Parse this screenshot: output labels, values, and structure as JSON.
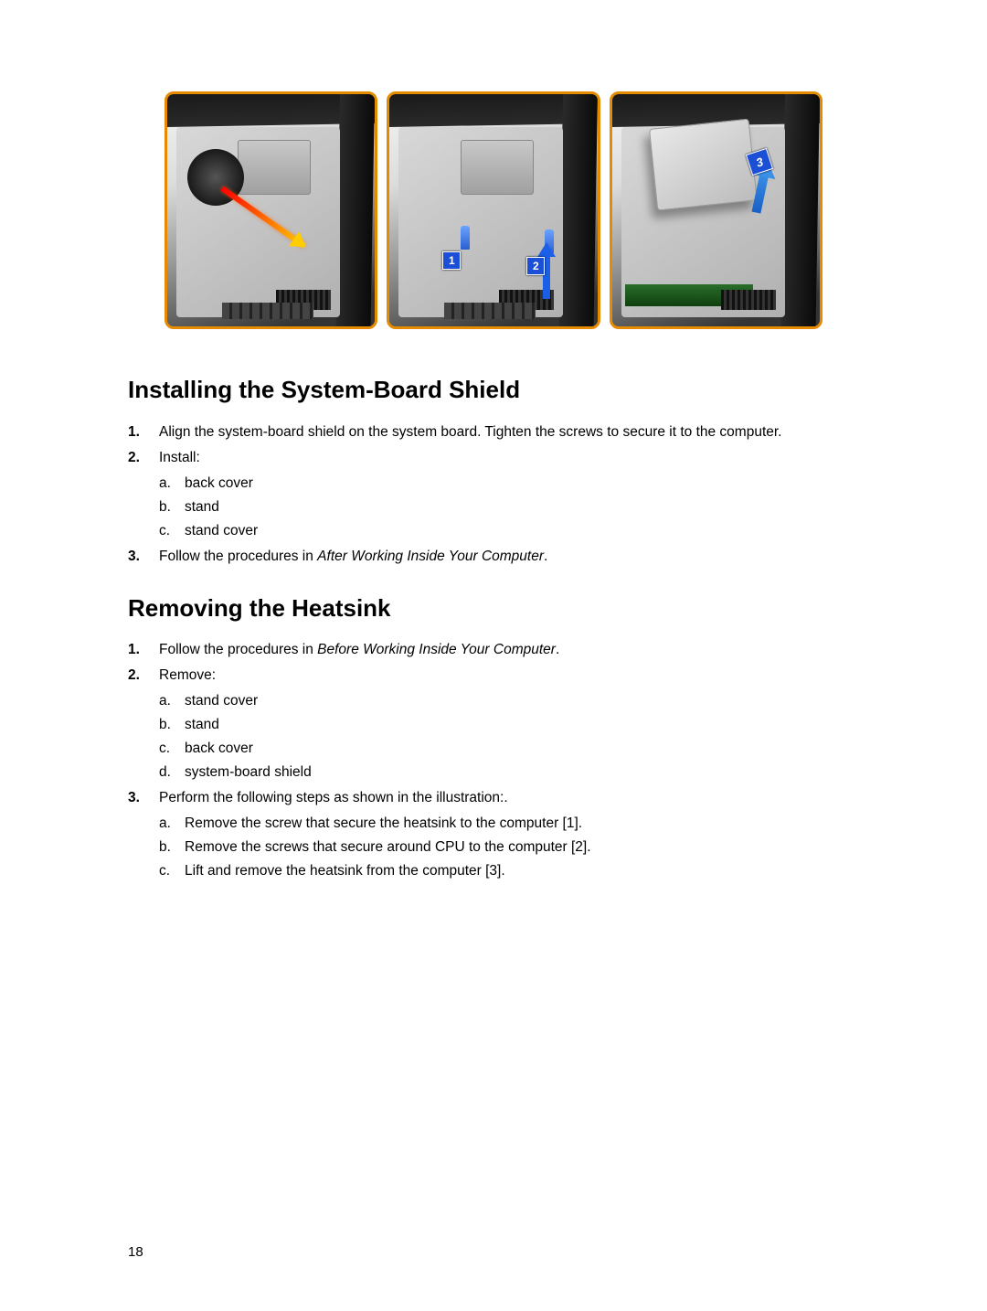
{
  "figure": {
    "accent_border_color": "#e68a00",
    "panel1_callout": "",
    "panel2_callout_1": "1",
    "panel2_callout_2": "2",
    "panel3_callout_3": "3"
  },
  "section1": {
    "heading": "Installing the System-Board Shield",
    "steps": [
      {
        "text": "Align the system-board shield on the system board. Tighten the screws to secure it to the computer."
      },
      {
        "text": "Install:",
        "sub": [
          "back cover",
          "stand",
          "stand cover"
        ]
      },
      {
        "prefix": "Follow the procedures in ",
        "italic": "After Working Inside Your Computer",
        "suffix": "."
      }
    ]
  },
  "section2": {
    "heading": "Removing the Heatsink",
    "steps": [
      {
        "prefix": "Follow the procedures in ",
        "italic": "Before Working Inside Your Computer",
        "suffix": "."
      },
      {
        "text": "Remove:",
        "sub": [
          "stand cover",
          "stand",
          "back cover",
          "system-board shield"
        ]
      },
      {
        "text": "Perform the following steps as shown in the illustration:.",
        "sub": [
          "Remove the screw that secure the heatsink to the computer [1].",
          "Remove the screws that secure around CPU to the computer [2].",
          "Lift and remove the heatsink from the computer [3]."
        ]
      }
    ]
  },
  "page_number": "18"
}
